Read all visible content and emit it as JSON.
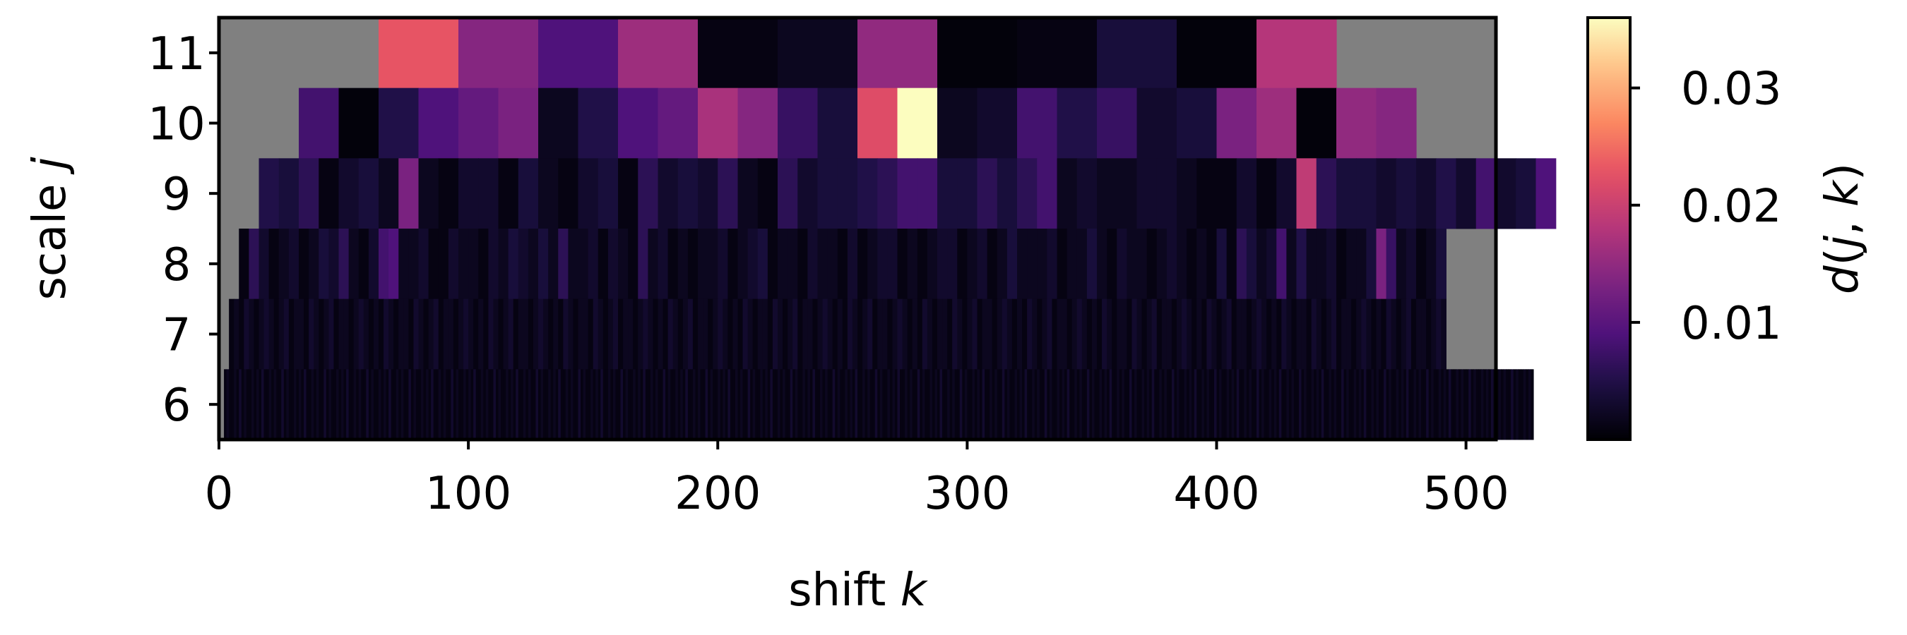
{
  "chart_data": {
    "type": "heatmap",
    "title": "",
    "xlabel": {
      "text": "shift ",
      "var": "k"
    },
    "ylabel": {
      "text": "scale ",
      "var": "j"
    },
    "xlim": [
      0,
      512
    ],
    "x_ticks": [
      0,
      100,
      200,
      300,
      400,
      500
    ],
    "y_ticks": [
      6,
      7,
      8,
      9,
      10,
      11
    ],
    "missing_color": "#808080",
    "colormap": "magma",
    "colorbar": {
      "label_parts": [
        {
          "text": "d",
          "italic": true
        },
        {
          "text": "(",
          "italic": false
        },
        {
          "text": "j",
          "italic": true
        },
        {
          "text": ", ",
          "italic": false
        },
        {
          "text": "k",
          "italic": true
        },
        {
          "text": ")",
          "italic": false
        }
      ],
      "range": [
        0,
        0.036
      ],
      "ticks": [
        0.01,
        0.02,
        0.03
      ],
      "tick_labels": [
        "0.01",
        "0.02",
        "0.03"
      ]
    },
    "rows": [
      {
        "scale": 11,
        "k_start": 64,
        "bin_width": 32,
        "values": [
          0.023,
          0.014,
          0.009,
          0.016,
          0.001,
          0.002,
          0.015,
          0.0005,
          0.001,
          0.004,
          0.0005,
          0.018
        ]
      },
      {
        "scale": 10,
        "k_start": 32,
        "bin_width": 16,
        "values": [
          0.008,
          0.0005,
          0.005,
          0.009,
          0.011,
          0.013,
          0.002,
          0.005,
          0.009,
          0.011,
          0.017,
          0.014,
          0.007,
          0.004,
          0.022,
          0.036,
          0.002,
          0.003,
          0.008,
          0.005,
          0.007,
          0.003,
          0.004,
          0.013,
          0.016,
          0.0005,
          0.015,
          0.014
        ]
      },
      {
        "scale": 9,
        "k_start": 16,
        "bin_width": 8,
        "values": [
          0.005,
          0.004,
          0.006,
          0.001,
          0.003,
          0.004,
          0.002,
          0.013,
          0.002,
          0.001,
          0.003,
          0.003,
          0.001,
          0.004,
          0.002,
          0.001,
          0.003,
          0.004,
          0.001,
          0.006,
          0.003,
          0.004,
          0.003,
          0.006,
          0.002,
          0.001,
          0.006,
          0.003,
          0.004,
          0.004,
          0.005,
          0.006,
          0.008,
          0.008,
          0.004,
          0.004,
          0.006,
          0.004,
          0.006,
          0.008,
          0.002,
          0.003,
          0.002,
          0.002,
          0.003,
          0.003,
          0.002,
          0.001,
          0.001,
          0.003,
          0.001,
          0.003,
          0.019,
          0.006,
          0.004,
          0.004,
          0.003,
          0.004,
          0.003,
          0.005,
          0.003,
          0.008,
          0.003,
          0.004,
          0.009
        ]
      },
      {
        "scale": 8,
        "k_start": 8,
        "bin_width": 4,
        "values": [
          0.001,
          0.006,
          0.003,
          0.001,
          0.002,
          0.003,
          0.001,
          0.002,
          0.004,
          0.003,
          0.006,
          0.002,
          0.001,
          0.003,
          0.008,
          0.009,
          0.002,
          0.002,
          0.003,
          0.001,
          0.001,
          0.003,
          0.002,
          0.002,
          0.001,
          0.003,
          0.002,
          0.004,
          0.003,
          0.002,
          0.004,
          0.002,
          0.006,
          0.002,
          0.002,
          0.003,
          0.001,
          0.003,
          0.002,
          0.001,
          0.006,
          0.002,
          0.003,
          0.001,
          0.002,
          0.001,
          0.002,
          0.002,
          0.003,
          0.001,
          0.002,
          0.003,
          0.004,
          0.001,
          0.002,
          0.002,
          0.001,
          0.003,
          0.002,
          0.002,
          0.001,
          0.003,
          0.001,
          0.002,
          0.003,
          0.003,
          0.001,
          0.002,
          0.001,
          0.002,
          0.003,
          0.003,
          0.001,
          0.002,
          0.003,
          0.001,
          0.002,
          0.004,
          0.002,
          0.002,
          0.002,
          0.003,
          0.001,
          0.002,
          0.002,
          0.004,
          0.002,
          0.001,
          0.003,
          0.002,
          0.002,
          0.001,
          0.002,
          0.003,
          0.002,
          0.001,
          0.002,
          0.001,
          0.004,
          0.001,
          0.006,
          0.004,
          0.002,
          0.003,
          0.008,
          0.002,
          0.005,
          0.002,
          0.002,
          0.003,
          0.001,
          0.002,
          0.002,
          0.004,
          0.013,
          0.007,
          0.002,
          0.003,
          0.001,
          0.002,
          0.004
        ]
      },
      {
        "scale": 7,
        "k_start": 4,
        "bin_width": 2,
        "values": [
          0.001,
          0.002,
          0.001,
          0.003,
          0.002,
          0.001,
          0.002,
          0.003,
          0.002,
          0.001,
          0.002,
          0.003,
          0.001,
          0.002,
          0.002,
          0.001,
          0.003,
          0.002,
          0.001,
          0.002,
          0.003,
          0.001,
          0.002,
          0.002,
          0.001,
          0.002,
          0.003,
          0.002,
          0.001,
          0.002,
          0.001,
          0.003,
          0.002,
          0.001,
          0.002,
          0.002,
          0.001,
          0.003,
          0.002,
          0.001,
          0.002,
          0.003,
          0.001,
          0.002,
          0.002,
          0.001,
          0.002,
          0.003,
          0.002,
          0.001,
          0.002,
          0.001,
          0.003,
          0.002,
          0.001,
          0.002,
          0.003,
          0.001,
          0.002,
          0.002,
          0.001,
          0.002,
          0.003,
          0.002,
          0.001,
          0.002,
          0.001,
          0.003,
          0.002,
          0.001,
          0.002,
          0.002,
          0.001,
          0.003,
          0.002,
          0.001,
          0.002,
          0.003,
          0.001,
          0.002,
          0.002,
          0.001,
          0.002,
          0.003,
          0.002,
          0.001,
          0.002,
          0.001,
          0.003,
          0.002,
          0.001,
          0.002,
          0.003,
          0.001,
          0.002,
          0.002,
          0.001,
          0.002,
          0.003,
          0.002,
          0.001,
          0.002,
          0.001,
          0.003,
          0.002,
          0.001,
          0.002,
          0.002,
          0.001,
          0.003,
          0.002,
          0.001,
          0.002,
          0.003,
          0.001,
          0.002,
          0.002,
          0.001,
          0.002,
          0.003,
          0.002,
          0.001,
          0.002,
          0.001,
          0.003,
          0.002,
          0.001,
          0.002,
          0.003,
          0.001,
          0.002,
          0.002,
          0.001,
          0.002,
          0.003,
          0.002,
          0.001,
          0.002,
          0.001,
          0.003,
          0.002,
          0.001,
          0.002,
          0.002,
          0.001,
          0.003,
          0.002,
          0.001,
          0.002,
          0.003,
          0.001,
          0.002,
          0.002,
          0.001,
          0.002,
          0.003,
          0.002,
          0.001,
          0.002,
          0.001,
          0.003,
          0.002,
          0.001,
          0.002,
          0.003,
          0.001,
          0.002,
          0.002,
          0.001,
          0.002,
          0.003,
          0.002,
          0.001,
          0.002,
          0.001,
          0.003,
          0.002,
          0.001,
          0.002,
          0.002,
          0.001,
          0.003,
          0.002,
          0.001,
          0.002,
          0.003,
          0.001,
          0.002,
          0.002,
          0.001,
          0.002,
          0.003,
          0.002,
          0.001,
          0.002,
          0.001,
          0.003,
          0.002,
          0.001,
          0.002,
          0.003,
          0.001,
          0.002,
          0.002,
          0.001,
          0.002,
          0.003,
          0.002,
          0.001,
          0.002,
          0.001,
          0.003,
          0.002,
          0.001,
          0.002,
          0.002,
          0.001,
          0.003,
          0.002,
          0.001,
          0.002,
          0.003,
          0.001,
          0.002,
          0.002,
          0.001,
          0.002,
          0.003,
          0.002,
          0.001,
          0.002,
          0.001,
          0.003,
          0.002,
          0.001,
          0.002,
          0.003,
          0.001,
          0.002,
          0.002,
          0.001,
          0.002,
          0.003,
          0.002
        ]
      },
      {
        "scale": 6,
        "k_start": 2,
        "bin_width": 1,
        "values": [
          0.001,
          0.002,
          0.001,
          0.001,
          0.002,
          0.001,
          0.003,
          0.001,
          0.002,
          0.001,
          0.001,
          0.002,
          0.001,
          0.002,
          0.001,
          0.003,
          0.001,
          0.001,
          0.002,
          0.001,
          0.002,
          0.001,
          0.001,
          0.003,
          0.001,
          0.002,
          0.001,
          0.001,
          0.002,
          0.001,
          0.002,
          0.001,
          0.003,
          0.001,
          0.001,
          0.002,
          0.001,
          0.002,
          0.001,
          0.001,
          0.003,
          0.001,
          0.002,
          0.001,
          0.001,
          0.002,
          0.001,
          0.002,
          0.001,
          0.003,
          0.001,
          0.001,
          0.002,
          0.001,
          0.002,
          0.001,
          0.001,
          0.003,
          0.001,
          0.002,
          0.001,
          0.001,
          0.002,
          0.001,
          0.002,
          0.001,
          0.003,
          0.001,
          0.001,
          0.002,
          0.001,
          0.002,
          0.001,
          0.001,
          0.003,
          0.001,
          0.002,
          0.001,
          0.001,
          0.002,
          0.001,
          0.002,
          0.001,
          0.003,
          0.001,
          0.001,
          0.002,
          0.001,
          0.002,
          0.001,
          0.001,
          0.003,
          0.001,
          0.002,
          0.001,
          0.001,
          0.002,
          0.001,
          0.002,
          0.001,
          0.003,
          0.001,
          0.001,
          0.002,
          0.001,
          0.002,
          0.001,
          0.001,
          0.003,
          0.001,
          0.002,
          0.001,
          0.001,
          0.002,
          0.001,
          0.002,
          0.001,
          0.003,
          0.001,
          0.001,
          0.002,
          0.001,
          0.002,
          0.001,
          0.001,
          0.003,
          0.001,
          0.002,
          0.001,
          0.001,
          0.002,
          0.001,
          0.002,
          0.001,
          0.003,
          0.001,
          0.001,
          0.002,
          0.001,
          0.002,
          0.001,
          0.001,
          0.003,
          0.001,
          0.002,
          0.001,
          0.001,
          0.002,
          0.001,
          0.002,
          0.001,
          0.003,
          0.001,
          0.001,
          0.002,
          0.001,
          0.002,
          0.001,
          0.001,
          0.003,
          0.001,
          0.002,
          0.001,
          0.001,
          0.002,
          0.001,
          0.002,
          0.001,
          0.003,
          0.001,
          0.001,
          0.002,
          0.001,
          0.002,
          0.001,
          0.001,
          0.003,
          0.001,
          0.002,
          0.001,
          0.001,
          0.002,
          0.001,
          0.002,
          0.001,
          0.003,
          0.001,
          0.001,
          0.002,
          0.001,
          0.002,
          0.001,
          0.001,
          0.003,
          0.001,
          0.002,
          0.001,
          0.001,
          0.002,
          0.001,
          0.002,
          0.001,
          0.003,
          0.001,
          0.001,
          0.002,
          0.001,
          0.002,
          0.001,
          0.001,
          0.003,
          0.001,
          0.002,
          0.001,
          0.001,
          0.002,
          0.001,
          0.002,
          0.001,
          0.003,
          0.001,
          0.001,
          0.002,
          0.001,
          0.002,
          0.001,
          0.001,
          0.003,
          0.001,
          0.002,
          0.001,
          0.001,
          0.002,
          0.001,
          0.002,
          0.001,
          0.003,
          0.001,
          0.001,
          0.002,
          0.001,
          0.002,
          0.001,
          0.001,
          0.003,
          0.001,
          0.002,
          0.001,
          0.001,
          0.002,
          0.001,
          0.002,
          0.001,
          0.003,
          0.001,
          0.001,
          0.002,
          0.001,
          0.002,
          0.001,
          0.001,
          0.003,
          0.001,
          0.002,
          0.001,
          0.001,
          0.002,
          0.001,
          0.002,
          0.001,
          0.003,
          0.001,
          0.001,
          0.002,
          0.001,
          0.002,
          0.001,
          0.001,
          0.003,
          0.001,
          0.002,
          0.001,
          0.001,
          0.002,
          0.001,
          0.002,
          0.001,
          0.003,
          0.001,
          0.001,
          0.002,
          0.001,
          0.002,
          0.001,
          0.001,
          0.003,
          0.001,
          0.002,
          0.001,
          0.001,
          0.002,
          0.001,
          0.002,
          0.001,
          0.003,
          0.001,
          0.001,
          0.002,
          0.001,
          0.002,
          0.001,
          0.001,
          0.003,
          0.001,
          0.002,
          0.001,
          0.001,
          0.002,
          0.001,
          0.002,
          0.001,
          0.003,
          0.001,
          0.001,
          0.002,
          0.001,
          0.002,
          0.001,
          0.001,
          0.003,
          0.001,
          0.002,
          0.001,
          0.001,
          0.002,
          0.001,
          0.002,
          0.001,
          0.003,
          0.001,
          0.001,
          0.002,
          0.001,
          0.002,
          0.001,
          0.001,
          0.003,
          0.001,
          0.002,
          0.001,
          0.001,
          0.002,
          0.001,
          0.002,
          0.001,
          0.003,
          0.001,
          0.001,
          0.002,
          0.001,
          0.002,
          0.001,
          0.001,
          0.003,
          0.001,
          0.002,
          0.001,
          0.001,
          0.002,
          0.001,
          0.002,
          0.001,
          0.003,
          0.001,
          0.001,
          0.002,
          0.001,
          0.002,
          0.001,
          0.001,
          0.003,
          0.001,
          0.002,
          0.001,
          0.001,
          0.002,
          0.001,
          0.002,
          0.001,
          0.003,
          0.001,
          0.001,
          0.002,
          0.001,
          0.002,
          0.001,
          0.001,
          0.003,
          0.001,
          0.002,
          0.001,
          0.001,
          0.002,
          0.001,
          0.002,
          0.001,
          0.003,
          0.001,
          0.001,
          0.002,
          0.001,
          0.002,
          0.001,
          0.001,
          0.003,
          0.001,
          0.002,
          0.001,
          0.001,
          0.002,
          0.001,
          0.002,
          0.001,
          0.003,
          0.001,
          0.001,
          0.002,
          0.001,
          0.002,
          0.001,
          0.001,
          0.003,
          0.001,
          0.002,
          0.001,
          0.001,
          0.002,
          0.001,
          0.002,
          0.001,
          0.003,
          0.001,
          0.001,
          0.002,
          0.001,
          0.002,
          0.001,
          0.001,
          0.003,
          0.001,
          0.002,
          0.001,
          0.001,
          0.002,
          0.001,
          0.002,
          0.001,
          0.003,
          0.001,
          0.001,
          0.002,
          0.001,
          0.002,
          0.001,
          0.001,
          0.003,
          0.001,
          0.002,
          0.001,
          0.001,
          0.002,
          0.001,
          0.002,
          0.001,
          0.003,
          0.001,
          0.001,
          0.002,
          0.001,
          0.002,
          0.001,
          0.001,
          0.003,
          0.001,
          0.002,
          0.001,
          0.001,
          0.002,
          0.001,
          0.002,
          0.001,
          0.003,
          0.001,
          0.001,
          0.002,
          0.001,
          0.002,
          0.001,
          0.001,
          0.003,
          0.001,
          0.002,
          0.001,
          0.001,
          0.002,
          0.001,
          0.002,
          0.001,
          0.003,
          0.001,
          0.001,
          0.002,
          0.001,
          0.002,
          0.001,
          0.001,
          0.003,
          0.001,
          0.002,
          0.001,
          0.001,
          0.002,
          0.001,
          0.002,
          0.001
        ]
      }
    ]
  }
}
